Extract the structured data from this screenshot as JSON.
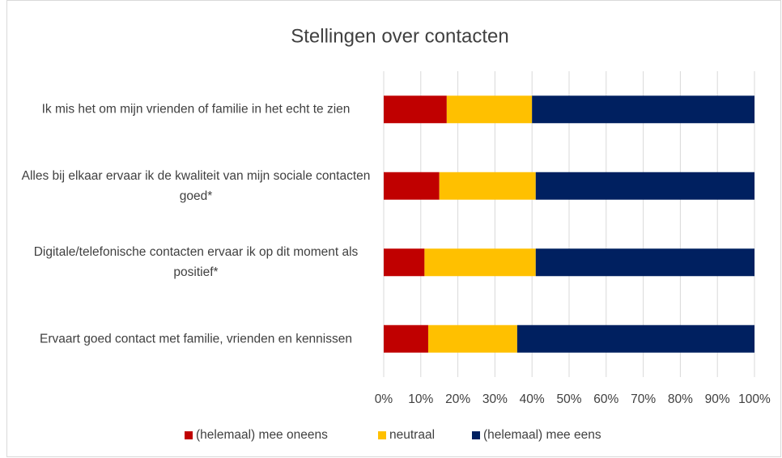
{
  "chart_data": {
    "type": "stacked_bar_horizontal",
    "title": "Stellingen over contacten",
    "categories": [
      "Ik mis het om mijn vrienden of familie in het echt te zien",
      "Alles bij elkaar ervaar ik de kwaliteit van mijn sociale contacten goed*",
      "Digitale/telefonische contacten ervaar ik op dit moment als positief*",
      "Ervaart goed contact met familie, vrienden en kennissen"
    ],
    "series": [
      {
        "name": "(helemaal) mee oneens",
        "color": "#c00000",
        "values": [
          17,
          15,
          11,
          12
        ]
      },
      {
        "name": "neutraal",
        "color": "#ffc000",
        "values": [
          23,
          26,
          30,
          24
        ]
      },
      {
        "name": "(helemaal) mee eens",
        "color": "#002060",
        "values": [
          60,
          59,
          59,
          64
        ]
      }
    ],
    "xlim": [
      0,
      100
    ],
    "xticks": [
      {
        "value": 0,
        "label": "0%"
      },
      {
        "value": 10,
        "label": "10%"
      },
      {
        "value": 20,
        "label": "20%"
      },
      {
        "value": 30,
        "label": "30%"
      },
      {
        "value": 40,
        "label": "40%"
      },
      {
        "value": 50,
        "label": "50%"
      },
      {
        "value": 60,
        "label": "60%"
      },
      {
        "value": 70,
        "label": "70%"
      },
      {
        "value": 80,
        "label": "80%"
      },
      {
        "value": 90,
        "label": "90%"
      },
      {
        "value": 100,
        "label": "100%"
      }
    ],
    "grid": true,
    "legend": "bottom"
  }
}
